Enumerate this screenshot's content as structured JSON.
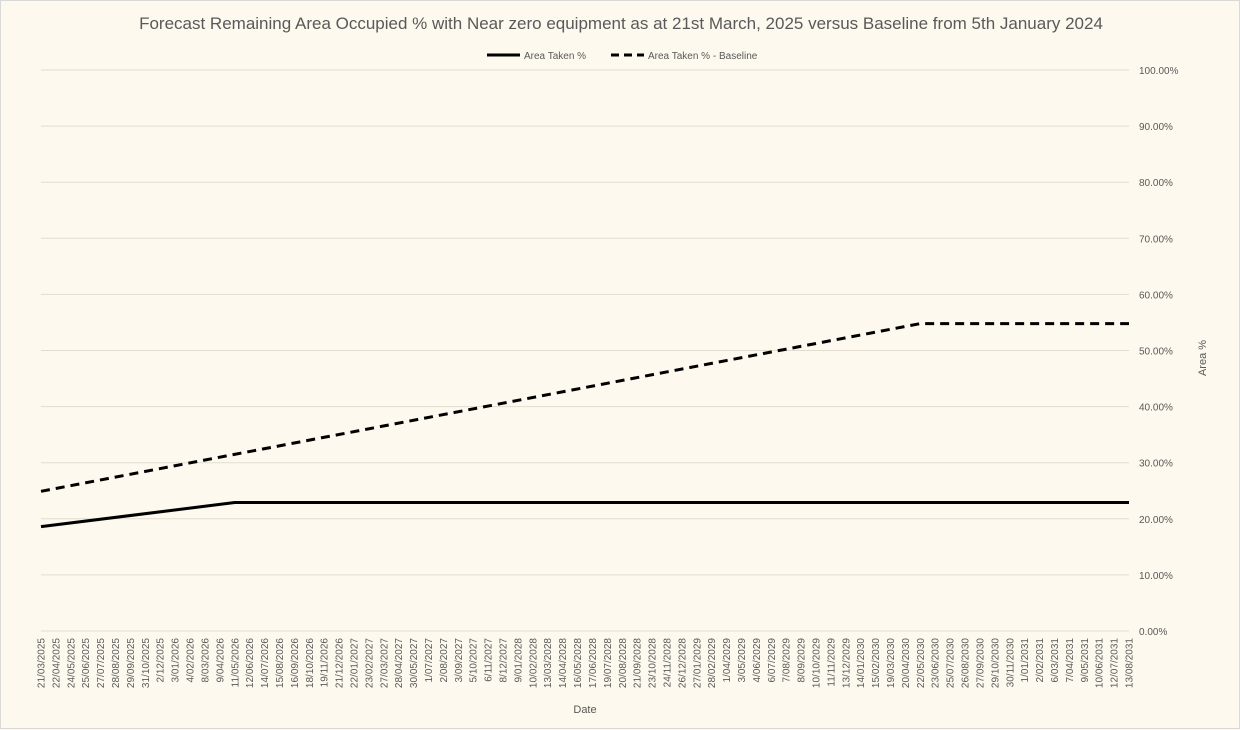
{
  "chart_data": {
    "type": "line",
    "title": "Forecast Remaining Area Occupied % with Near zero equipment as at 21st March, 2025 versus Baseline from 5th January 2024",
    "xlabel": "Date",
    "ylabel": "Area %",
    "ylim": [
      0,
      100
    ],
    "yticks": [
      "0.00%",
      "10.00%",
      "20.00%",
      "30.00%",
      "40.00%",
      "50.00%",
      "60.00%",
      "70.00%",
      "80.00%",
      "90.00%",
      "100.00%"
    ],
    "legend_position": "top-center",
    "categories": [
      "21/03/2025",
      "22/04/2025",
      "24/05/2025",
      "25/06/2025",
      "27/07/2025",
      "28/08/2025",
      "29/09/2025",
      "31/10/2025",
      "2/12/2025",
      "3/01/2026",
      "4/02/2026",
      "8/03/2026",
      "9/04/2026",
      "11/05/2026",
      "12/06/2026",
      "14/07/2026",
      "15/08/2026",
      "16/09/2026",
      "18/10/2026",
      "19/11/2026",
      "21/12/2026",
      "22/01/2027",
      "23/02/2027",
      "27/03/2027",
      "28/04/2027",
      "30/05/2027",
      "1/07/2027",
      "2/08/2027",
      "3/09/2027",
      "5/10/2027",
      "6/11/2027",
      "8/12/2027",
      "9/01/2028",
      "10/02/2028",
      "13/03/2028",
      "14/04/2028",
      "16/05/2028",
      "17/06/2028",
      "19/07/2028",
      "20/08/2028",
      "21/09/2028",
      "23/10/2028",
      "24/11/2028",
      "26/12/2028",
      "27/01/2029",
      "28/02/2029",
      "1/04/2029",
      "3/05/2029",
      "4/06/2029",
      "6/07/2029",
      "7/08/2029",
      "8/09/2029",
      "10/10/2029",
      "11/11/2029",
      "13/12/2029",
      "14/01/2030",
      "15/02/2030",
      "19/03/2030",
      "20/04/2030",
      "22/05/2030",
      "23/06/2030",
      "25/07/2030",
      "26/08/2030",
      "27/09/2030",
      "29/10/2030",
      "30/11/2030",
      "1/01/2031",
      "2/02/2031",
      "6/03/2031",
      "7/04/2031",
      "9/05/2031",
      "10/06/2031",
      "12/07/2031",
      "13/08/2031"
    ],
    "series": [
      {
        "name": "Area Taken %",
        "style": "solid",
        "color": "#000000",
        "points": [
          {
            "x": "21/03/2025",
            "y": 18.6
          },
          {
            "x": "11/05/2026",
            "y": 22.9
          },
          {
            "x": "13/08/2031",
            "y": 22.9
          }
        ]
      },
      {
        "name": "Area Taken % - Baseline",
        "style": "dashed",
        "color": "#000000",
        "points": [
          {
            "x": "21/03/2025",
            "y": 24.9
          },
          {
            "x": "22/05/2030",
            "y": 54.8
          },
          {
            "x": "13/08/2031",
            "y": 54.8
          }
        ]
      }
    ]
  }
}
